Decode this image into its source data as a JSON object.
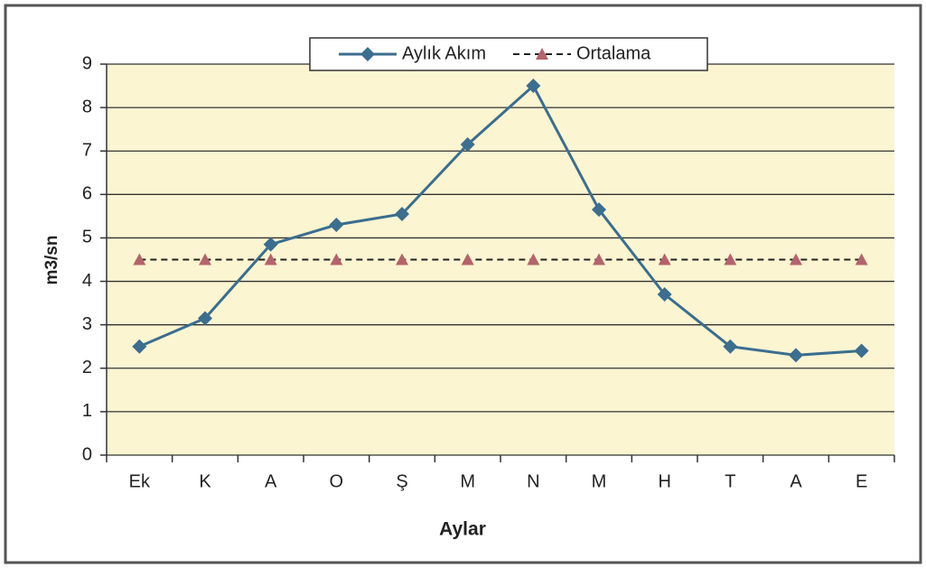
{
  "chart_data": {
    "type": "line",
    "categories": [
      "Ek",
      "K",
      "A",
      "O",
      "Ş",
      "M",
      "N",
      "M",
      "H",
      "T",
      "A",
      "E"
    ],
    "series": [
      {
        "name": "Aylık Akım",
        "color": "#3b6e8f",
        "marker": "diamond",
        "dash": false,
        "values": [
          2.5,
          3.15,
          4.85,
          5.3,
          5.55,
          7.15,
          8.5,
          5.65,
          3.7,
          2.5,
          2.3,
          2.4
        ]
      },
      {
        "name": "Ortalama",
        "color": "#222222",
        "marker_color": "#b5636b",
        "marker": "triangle",
        "dash": true,
        "values": [
          4.5,
          4.5,
          4.5,
          4.5,
          4.5,
          4.5,
          4.5,
          4.5,
          4.5,
          4.5,
          4.5,
          4.5
        ]
      }
    ],
    "xlabel": "Aylar",
    "ylabel": "m3/sn",
    "ylim": [
      0,
      9
    ],
    "yticks": [
      0,
      1,
      2,
      3,
      4,
      5,
      6,
      7,
      8,
      9
    ],
    "grid": true,
    "legend": "top",
    "background": "#fcf5d2"
  }
}
